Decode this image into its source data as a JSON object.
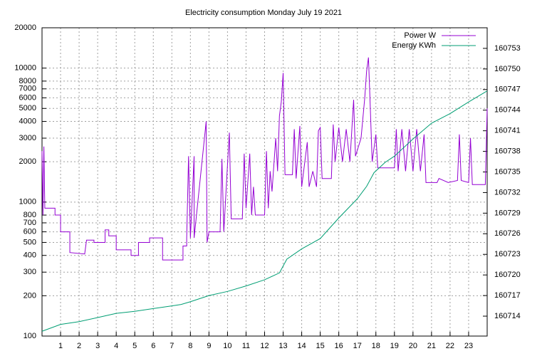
{
  "chart_data": {
    "type": "line",
    "title": "Electricity consumption Monday July 19 2021",
    "xlim": [
      0,
      24
    ],
    "xticks": [
      1,
      2,
      3,
      4,
      5,
      6,
      7,
      8,
      9,
      10,
      11,
      12,
      13,
      14,
      15,
      16,
      17,
      18,
      19,
      20,
      21,
      22,
      23
    ],
    "ylim": [
      100,
      20000
    ],
    "log_y": true,
    "yticks": [
      100,
      200,
      300,
      400,
      500,
      600,
      700,
      800,
      1000,
      2000,
      3000,
      4000,
      5000,
      6000,
      7000,
      8000,
      10000,
      20000
    ],
    "y2lim": [
      160711.1,
      160756
    ],
    "y2ticks": [
      160714,
      160717,
      160720,
      160723,
      160726,
      160729,
      160732,
      160735,
      160738,
      160741,
      160744,
      160747,
      160750,
      160753
    ],
    "grid": true,
    "legend": "top-right",
    "series": [
      {
        "name": "Power W",
        "color": "#9400d3",
        "x": [
          0,
          0.05,
          0.1,
          0.15,
          0.2,
          0.7,
          0.7,
          1.0,
          1.0,
          1.5,
          1.5,
          2.3,
          2.4,
          2.8,
          2.8,
          3.4,
          3.4,
          3.6,
          3.6,
          4.0,
          4.0,
          4.8,
          4.8,
          5.2,
          5.2,
          5.8,
          5.8,
          6.5,
          6.5,
          7.6,
          7.6,
          7.8,
          7.8,
          7.9,
          8.0,
          8.2,
          8.2,
          8.85,
          8.9,
          9.0,
          9.6,
          9.7,
          9.8,
          10.0,
          10.1,
          10.2,
          10.8,
          10.9,
          11.0,
          11.2,
          11.3,
          11.4,
          11.5,
          12.0,
          12.1,
          12.2,
          12.3,
          12.4,
          12.6,
          12.7,
          12.8,
          12.9,
          13.0,
          13.1,
          13.5,
          13.6,
          13.7,
          13.9,
          14.0,
          14.3,
          14.4,
          14.6,
          14.8,
          14.9,
          15.0,
          15.1,
          15.6,
          15.7,
          15.8,
          16.0,
          16.2,
          16.4,
          16.6,
          16.8,
          16.9,
          17.2,
          17.4,
          17.5,
          17.6,
          17.7,
          17.8,
          18.0,
          18.1,
          19.0,
          19.1,
          19.2,
          19.4,
          19.6,
          19.8,
          20.0,
          20.2,
          20.4,
          20.6,
          20.7,
          21.3,
          21.4,
          21.9,
          22.4,
          22.5,
          22.6,
          23.0,
          23.1,
          23.2,
          23.9,
          24
        ],
        "values": [
          2400,
          800,
          2600,
          900,
          900,
          900,
          800,
          800,
          600,
          600,
          420,
          410,
          520,
          520,
          500,
          500,
          620,
          620,
          560,
          560,
          440,
          440,
          400,
          400,
          500,
          500,
          540,
          540,
          370,
          370,
          470,
          470,
          540,
          2200,
          540,
          2200,
          540,
          4000,
          500,
          600,
          600,
          2100,
          600,
          1900,
          3300,
          750,
          750,
          2300,
          900,
          2300,
          800,
          1300,
          800,
          800,
          2400,
          900,
          1700,
          1200,
          3000,
          1700,
          4400,
          5600,
          9200,
          1600,
          1600,
          3500,
          1500,
          3700,
          1300,
          2800,
          1300,
          1700,
          1300,
          3400,
          3600,
          1500,
          1500,
          3800,
          2000,
          3600,
          2000,
          3500,
          2000,
          5800,
          2200,
          3000,
          6000,
          9500,
          12000,
          5000,
          2000,
          3200,
          1800,
          1800,
          3500,
          1700,
          3500,
          1700,
          3500,
          1700,
          3500,
          1700,
          3200,
          1400,
          1400,
          1500,
          1400,
          1450,
          3200,
          1450,
          1400,
          3000,
          1350,
          1350,
          5000
        ]
      },
      {
        "name": "Energy KWh",
        "color": "#009e73",
        "axis": "y2",
        "x": [
          0,
          1,
          2,
          3,
          4,
          5,
          6,
          7,
          7.5,
          8,
          9,
          10,
          11,
          12,
          12.8,
          13.2,
          14,
          15,
          15.3,
          16,
          17,
          17.5,
          17.9,
          18.5,
          19,
          20,
          21,
          22,
          23,
          24
        ],
        "values": [
          160711.8,
          160712.8,
          160713.2,
          160713.8,
          160714.4,
          160714.7,
          160715.1,
          160715.5,
          160715.7,
          160716.1,
          160717.0,
          160717.6,
          160718.4,
          160719.3,
          160720.3,
          160722.3,
          160723.8,
          160725.3,
          160726.2,
          160728.3,
          160731.1,
          160732.9,
          160734.9,
          160736.4,
          160737.3,
          160739.8,
          160742.1,
          160743.5,
          160745.2,
          160746.8
        ]
      }
    ]
  }
}
